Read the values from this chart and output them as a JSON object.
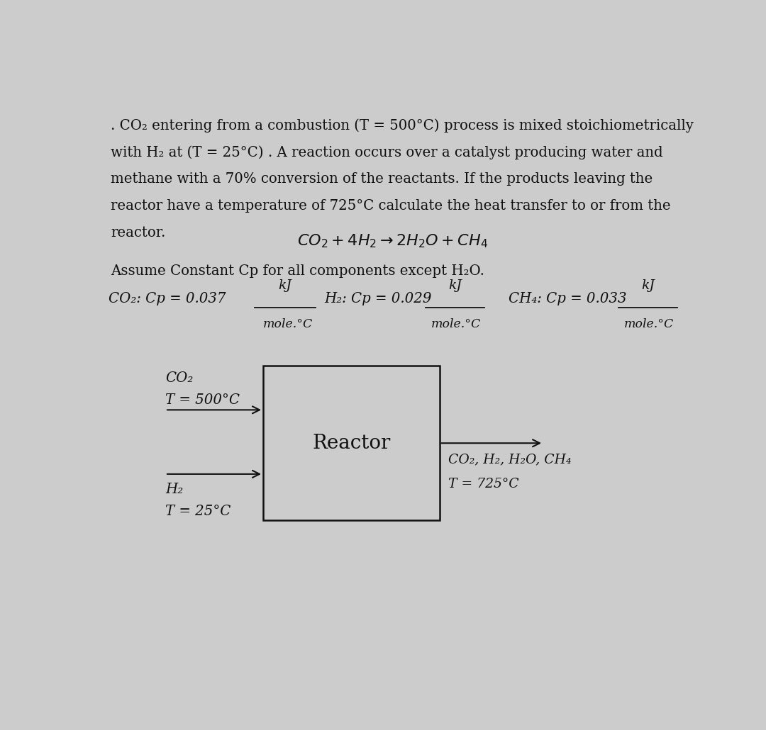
{
  "bg_color": "#cccccc",
  "text_color": "#111111",
  "para_line1": ". CO₂ entering from a combustion (T = 500°C) process is mixed stoichiometrically",
  "para_line2": "with H₂ at (T = 25°C) . A reaction occurs over a catalyst producing water and",
  "para_line3": "methane with a 70% conversion of the reactants. If the products leaving the",
  "para_line4": "reactor have a temperature of 725°C calculate the heat transfer to or from the",
  "para_line5": "reactor.",
  "reaction": "$CO_2 + 4H_2 \\rightarrow 2H_2O + CH_4$",
  "assume_text": "Assume Constant Cp for all components except H₂O.",
  "cp_co2_label": "CO₂: Cp = 0.037",
  "cp_h2_label": "H₂: Cp = 0.029",
  "cp_ch4_label": "CH₄: Cp = 0.033",
  "cp_units_top": "kJ",
  "cp_units_bot": "mole.°C",
  "inlet1_line1": "CO₂",
  "inlet1_line2": "T = 500°C",
  "inlet2_line1": "H₂",
  "inlet2_line2": "T = 25°C",
  "reactor_label": "Reactor",
  "outlet_line1": "CO₂, H₂, H₂O, CH₄",
  "outlet_line2": "T = 725°C"
}
